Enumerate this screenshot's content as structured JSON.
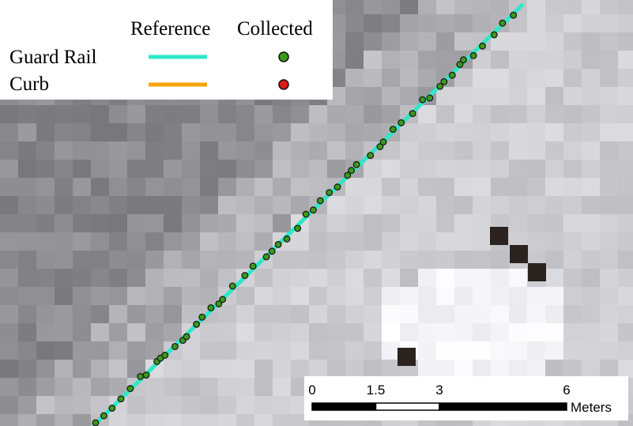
{
  "legend": {
    "headers": [
      "Reference",
      "Collected"
    ],
    "items": [
      {
        "label": "Guard Rail",
        "line_color": "#2ee8c8",
        "point_color": "#3c9a1a"
      },
      {
        "label": "Curb",
        "line_color": "#f5a30a",
        "point_color": "#e01818"
      }
    ]
  },
  "scale_bar": {
    "ticks": [
      0,
      1.5,
      3,
      6
    ],
    "unit": "Meters"
  }
}
